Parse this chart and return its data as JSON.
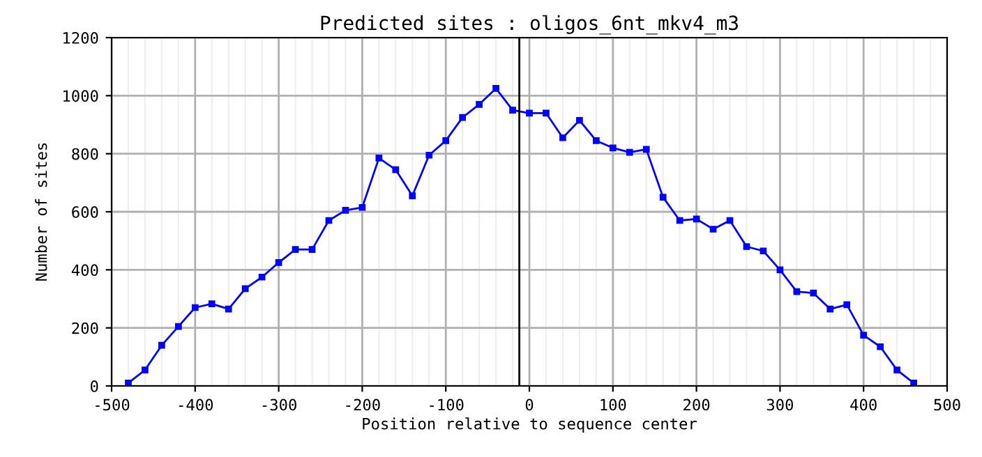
{
  "chart_data": {
    "type": "line",
    "title": "Predicted sites : oligos_6nt_mkv4_m3",
    "xlabel": "Position relative to sequence center",
    "ylabel": "Number of sites",
    "x": [
      -480,
      -460,
      -440,
      -420,
      -400,
      -380,
      -360,
      -340,
      -320,
      -300,
      -280,
      -260,
      -240,
      -220,
      -200,
      -180,
      -160,
      -140,
      -120,
      -100,
      -80,
      -60,
      -40,
      -20,
      0,
      20,
      40,
      60,
      80,
      100,
      120,
      140,
      160,
      180,
      200,
      220,
      240,
      260,
      280,
      300,
      320,
      340,
      360,
      380,
      400,
      420,
      440,
      460
    ],
    "series": [
      {
        "color": "#0000ff",
        "values": [
          10,
          55,
          140,
          205,
          270,
          283,
          265,
          335,
          375,
          425,
          470,
          470,
          570,
          605,
          615,
          785,
          745,
          655,
          795,
          845,
          925,
          970,
          1025,
          950,
          940,
          940,
          855,
          915,
          845,
          820,
          805,
          815,
          650,
          570,
          575,
          540,
          570,
          480,
          465,
          400,
          325,
          320,
          265,
          280,
          175,
          135,
          55,
          10
        ]
      }
    ],
    "xlim": [
      -500,
      500
    ],
    "ylim": [
      0,
      1200
    ],
    "xticks": [
      -500,
      -400,
      -300,
      -200,
      -100,
      0,
      100,
      200,
      300,
      400,
      500
    ],
    "yticks": [
      0,
      200,
      400,
      600,
      800,
      1000,
      1200
    ],
    "grid": true,
    "marker": "square",
    "line_style": "solid",
    "ref_lines": [
      {
        "axis": "x",
        "value": -12,
        "color": "#000000"
      }
    ]
  }
}
